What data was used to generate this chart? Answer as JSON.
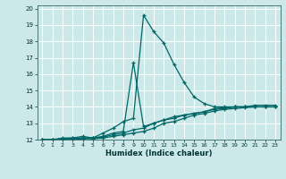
{
  "xlabel": "Humidex (Indice chaleur)",
  "bg_color": "#cce8e8",
  "grid_color": "#aacccc",
  "line_color": "#006666",
  "xlim": [
    -0.5,
    23.5
  ],
  "ylim": [
    12,
    20.2
  ],
  "yticks": [
    12,
    13,
    14,
    15,
    16,
    17,
    18,
    19,
    20
  ],
  "xticks": [
    0,
    1,
    2,
    3,
    4,
    5,
    6,
    7,
    8,
    9,
    10,
    11,
    12,
    13,
    14,
    15,
    16,
    17,
    18,
    19,
    20,
    21,
    22,
    23
  ],
  "lines": [
    {
      "x": [
        0,
        1,
        2,
        3,
        4,
        5,
        6,
        7,
        8,
        9,
        10,
        11,
        12,
        13,
        14,
        15,
        16,
        17,
        18,
        19,
        20,
        21,
        22,
        23
      ],
      "y": [
        12,
        12,
        12.1,
        12.1,
        12.2,
        12.1,
        12.4,
        12.7,
        13.1,
        13.3,
        19.6,
        18.6,
        17.9,
        16.6,
        15.5,
        14.6,
        14.2,
        14.0,
        14.0,
        14.0,
        14.0,
        14.1,
        14.1,
        14.1
      ]
    },
    {
      "x": [
        0,
        1,
        2,
        3,
        4,
        5,
        6,
        7,
        8,
        9,
        10,
        11,
        12,
        13,
        14,
        15,
        16,
        17,
        18,
        19,
        20,
        21,
        22,
        23
      ],
      "y": [
        12,
        12,
        12.05,
        12.1,
        12.1,
        12.1,
        12.2,
        12.4,
        12.5,
        16.7,
        12.8,
        13.0,
        13.2,
        13.4,
        13.5,
        13.6,
        13.7,
        13.9,
        13.95,
        14.0,
        14.0,
        14.0,
        14.0,
        14.0
      ]
    },
    {
      "x": [
        0,
        1,
        2,
        3,
        4,
        5,
        6,
        7,
        8,
        9,
        10,
        11,
        12,
        13,
        14,
        15,
        16,
        17,
        18,
        19,
        20,
        21,
        22,
        23
      ],
      "y": [
        12,
        12,
        12.0,
        12.05,
        12.1,
        12.1,
        12.15,
        12.3,
        12.4,
        12.6,
        12.7,
        13.0,
        13.2,
        13.3,
        13.5,
        13.6,
        13.7,
        13.85,
        13.9,
        14.0,
        14.0,
        14.0,
        14.0,
        14.0
      ]
    },
    {
      "x": [
        0,
        1,
        2,
        3,
        4,
        5,
        6,
        7,
        8,
        9,
        10,
        11,
        12,
        13,
        14,
        15,
        16,
        17,
        18,
        19,
        20,
        21,
        22,
        23
      ],
      "y": [
        12,
        12,
        12.0,
        12.0,
        12.05,
        12.05,
        12.1,
        12.2,
        12.3,
        12.4,
        12.5,
        12.7,
        13.0,
        13.1,
        13.3,
        13.5,
        13.6,
        13.75,
        13.85,
        13.9,
        13.95,
        14.0,
        14.0,
        14.0
      ]
    }
  ]
}
